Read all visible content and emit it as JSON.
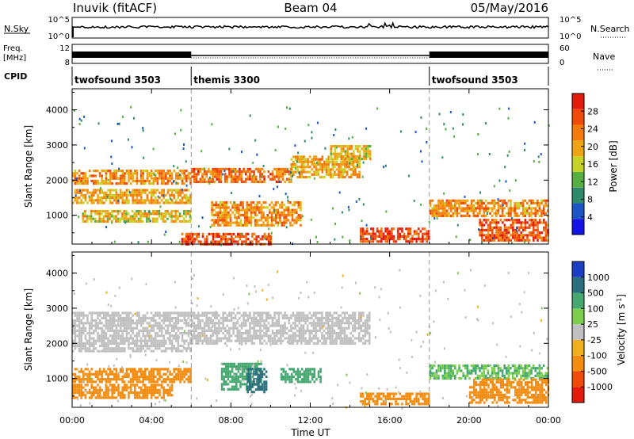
{
  "header": {
    "station": "Inuvik (fitACF)",
    "beam": "Beam 04",
    "date": "05/May/2016"
  },
  "top_panels": {
    "nsky_label": "N.Sky",
    "nsky_ticks": [
      "10^5",
      "10^0"
    ],
    "nsearch_label": "N.Search",
    "nsearch_ticks": [
      "10^5",
      "10^0"
    ],
    "freq_label_1": "Freq.",
    "freq_label_2": "[MHz]",
    "freq_ticks": [
      "12",
      "8"
    ],
    "nave_label": "Nave",
    "nave_ticks": [
      "60",
      "0"
    ],
    "cpid_label": "CPID"
  },
  "cpid_segments": [
    {
      "name": "twofsound 3503",
      "start_hour": 0,
      "end_hour": 6
    },
    {
      "name": "themis 3300",
      "start_hour": 6,
      "end_hour": 18
    },
    {
      "name": "twofsound 3503",
      "start_hour": 18,
      "end_hour": 24
    }
  ],
  "x_axis": {
    "title": "Time UT",
    "ticks": [
      "00:00",
      "04:00",
      "08:00",
      "12:00",
      "16:00",
      "20:00",
      "00:00"
    ]
  },
  "colors": {
    "power": [
      "#1212e6",
      "#1e55c4",
      "#2e8a6a",
      "#55b040",
      "#c8d226",
      "#f0a414",
      "#f47a0c",
      "#f04a08",
      "#e41a0a"
    ],
    "velocity": [
      "#e41a0a",
      "#f04a08",
      "#f48c10",
      "#f0b01e",
      "#c0c0c0",
      "#7ccf4c",
      "#46a870",
      "#2c7080",
      "#1a3fc4"
    ]
  },
  "chart_data": [
    {
      "type": "heatmap",
      "title": "Power",
      "xlabel": "Time UT",
      "ylabel": "Slant Range [km]",
      "xlim": [
        0,
        24
      ],
      "ylim": [
        180,
        4600
      ],
      "yticks": [
        "4000",
        "3000",
        "2000",
        "1000"
      ],
      "colorbar_label": "Power [dB]",
      "colorbar_ticks": [
        "28",
        "24",
        "20",
        "16",
        "12",
        "8",
        "4"
      ],
      "colorbar_range": [
        0,
        32
      ],
      "echo_regions": [
        {
          "t0": 0.0,
          "t1": 6.0,
          "r0": 1900,
          "r1": 2300,
          "value": 22
        },
        {
          "t0": 0.0,
          "t1": 6.0,
          "r0": 1350,
          "r1": 1750,
          "value": 20
        },
        {
          "t0": 0.5,
          "t1": 6.0,
          "r0": 850,
          "r1": 1150,
          "value": 18
        },
        {
          "t0": 5.5,
          "t1": 10.0,
          "r0": 200,
          "r1": 500,
          "value": 27
        },
        {
          "t0": 6.0,
          "t1": 11.0,
          "r0": 1950,
          "r1": 2350,
          "value": 24
        },
        {
          "t0": 7.0,
          "t1": 11.5,
          "r0": 700,
          "r1": 1400,
          "value": 22
        },
        {
          "t0": 11.0,
          "t1": 14.5,
          "r0": 2100,
          "r1": 2700,
          "value": 20
        },
        {
          "t0": 13.0,
          "t1": 15.0,
          "r0": 2600,
          "r1": 3000,
          "value": 18
        },
        {
          "t0": 14.5,
          "t1": 18.0,
          "r0": 250,
          "r1": 650,
          "value": 27
        },
        {
          "t0": 18.0,
          "t1": 24.0,
          "r0": 1000,
          "r1": 1450,
          "value": 22
        },
        {
          "t0": 20.5,
          "t1": 24.0,
          "r0": 300,
          "r1": 900,
          "value": 26
        }
      ]
    },
    {
      "type": "heatmap",
      "title": "Velocity",
      "xlabel": "Time UT",
      "ylabel": "Slant Range [km]",
      "xlim": [
        0,
        24
      ],
      "ylim": [
        180,
        4600
      ],
      "yticks": [
        "4000",
        "3000",
        "2000",
        "1000"
      ],
      "colorbar_label": "Velocity [m s^-1]",
      "colorbar_ticks": [
        "1000",
        "500",
        "100",
        "25",
        "-25",
        "-100",
        "-500",
        "-1000"
      ],
      "echo_regions": [
        {
          "t0": 0.0,
          "t1": 6.0,
          "r0": 1800,
          "r1": 2900,
          "value": 0
        },
        {
          "t0": 0.0,
          "t1": 6.0,
          "r0": 900,
          "r1": 1300,
          "value": -150
        },
        {
          "t0": 0.0,
          "t1": 5.0,
          "r0": 450,
          "r1": 850,
          "value": -400
        },
        {
          "t0": 7.5,
          "t1": 9.5,
          "r0": 700,
          "r1": 1450,
          "value": 300
        },
        {
          "t0": 8.8,
          "t1": 9.8,
          "r0": 650,
          "r1": 1300,
          "value": 900
        },
        {
          "t0": 10.5,
          "t1": 12.5,
          "r0": 900,
          "r1": 1300,
          "value": 200
        },
        {
          "t0": 6.0,
          "t1": 15.0,
          "r0": 2000,
          "r1": 2900,
          "value": 5
        },
        {
          "t0": 14.5,
          "t1": 18.0,
          "r0": 250,
          "r1": 600,
          "value": -150
        },
        {
          "t0": 18.0,
          "t1": 24.0,
          "r0": 1000,
          "r1": 1400,
          "value": 100
        },
        {
          "t0": 20.0,
          "t1": 24.0,
          "r0": 300,
          "r1": 1000,
          "value": -400
        }
      ]
    }
  ]
}
